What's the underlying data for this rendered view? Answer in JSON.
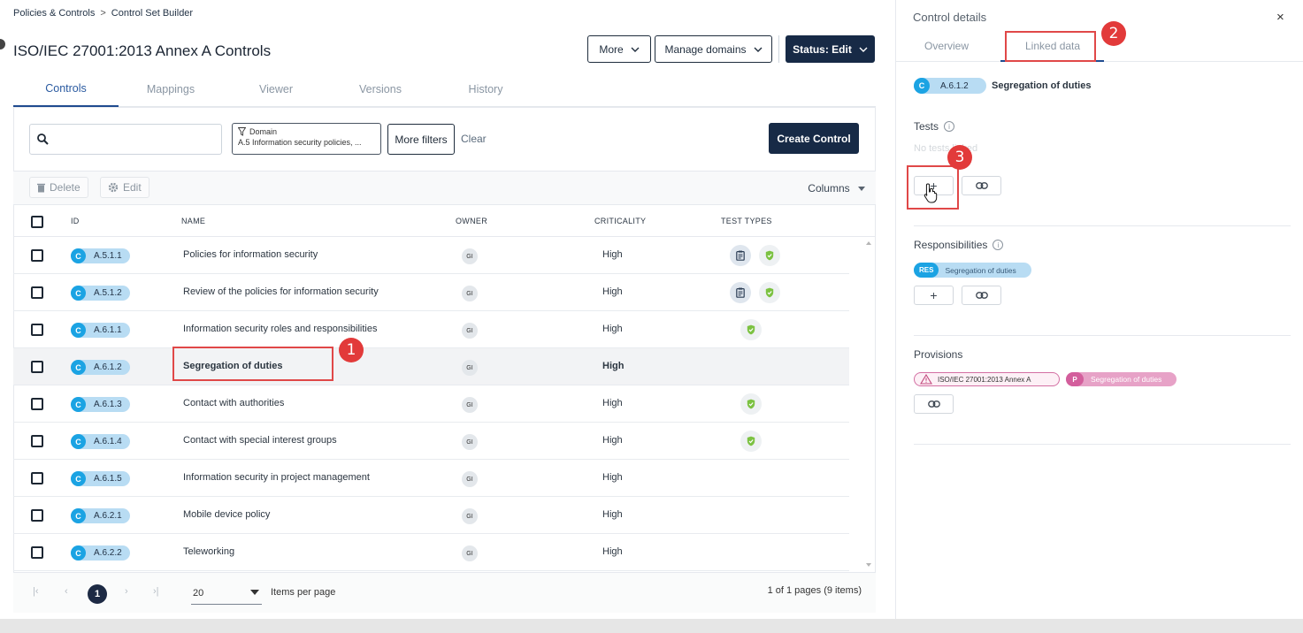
{
  "breadcrumb": {
    "parent": "Policies & Controls",
    "separator": ">",
    "current": "Control Set Builder"
  },
  "page_title": "ISO/IEC 27001:2013 Annex A Controls",
  "header_buttons": {
    "more": "More",
    "manage_domains": "Manage domains",
    "status": "Status: Edit"
  },
  "tabs": [
    "Controls",
    "Mappings",
    "Viewer",
    "Versions",
    "History"
  ],
  "search": {
    "value": "",
    "placeholder": ""
  },
  "filter": {
    "label": "Domain",
    "value": "A.5 Information security policies, ..."
  },
  "more_filters": "More filters",
  "clear": "Clear",
  "create_control": "Create Control",
  "toolbar": {
    "delete": "Delete",
    "edit": "Edit",
    "columns": "Columns"
  },
  "columns": [
    "ID",
    "NAME",
    "OWNER",
    "CRITICALITY",
    "TEST TYPES"
  ],
  "rows": [
    {
      "badge": "C",
      "id": "A.5.1.1",
      "name": "Policies for information security",
      "owner": "GI",
      "criticality": "High",
      "test_types": [
        "clipboard-icon",
        "shield-icon"
      ]
    },
    {
      "badge": "C",
      "id": "A.5.1.2",
      "name": "Review of the policies for information security",
      "owner": "GI",
      "criticality": "High",
      "test_types": [
        "clipboard-icon",
        "shield-icon"
      ]
    },
    {
      "badge": "C",
      "id": "A.6.1.1",
      "name": "Information security roles and responsibilities",
      "owner": "GI",
      "criticality": "High",
      "test_types": [
        "shield-icon"
      ]
    },
    {
      "badge": "C",
      "id": "A.6.1.2",
      "name": "Segregation of duties",
      "owner": "GI",
      "criticality": "High",
      "test_types": [],
      "selected": true
    },
    {
      "badge": "C",
      "id": "A.6.1.3",
      "name": "Contact with authorities",
      "owner": "GI",
      "criticality": "High",
      "test_types": [
        "shield-icon"
      ]
    },
    {
      "badge": "C",
      "id": "A.6.1.4",
      "name": "Contact with special interest groups",
      "owner": "GI",
      "criticality": "High",
      "test_types": [
        "shield-icon"
      ]
    },
    {
      "badge": "C",
      "id": "A.6.1.5",
      "name": "Information security in project management",
      "owner": "GI",
      "criticality": "High",
      "test_types": []
    },
    {
      "badge": "C",
      "id": "A.6.2.1",
      "name": "Mobile device policy",
      "owner": "GI",
      "criticality": "High",
      "test_types": []
    },
    {
      "badge": "C",
      "id": "A.6.2.2",
      "name": "Teleworking",
      "owner": "GI",
      "criticality": "High",
      "test_types": []
    }
  ],
  "pagination": {
    "current_page": "1",
    "per_page": "20",
    "per_page_label": "Items per page",
    "summary": "1 of 1 pages (9 items)"
  },
  "annotations": {
    "one": "1",
    "two": "2",
    "three": "3"
  },
  "panel": {
    "title": "Control details",
    "close": "×",
    "tabs": [
      "Overview",
      "Linked data"
    ],
    "control": {
      "badge": "C",
      "id": "A.6.1.2",
      "name": "Segregation of duties"
    },
    "tests": {
      "heading": "Tests",
      "empty": "No tests linked"
    },
    "responsibilities": {
      "heading": "Responsibilities",
      "badge": "RES",
      "item": "Segregation of duties"
    },
    "provisions": {
      "heading": "Provisions",
      "framework": "ISO/IEC 27001:2013 Annex A",
      "badge": "P",
      "item": "Segregation of duties"
    }
  },
  "colors": {
    "accent": "#172a46",
    "control_badge": "#1ba3e3",
    "provision_badge": "#d35e9c",
    "annotation": "#e23a3a",
    "shield": "#7cc242"
  }
}
